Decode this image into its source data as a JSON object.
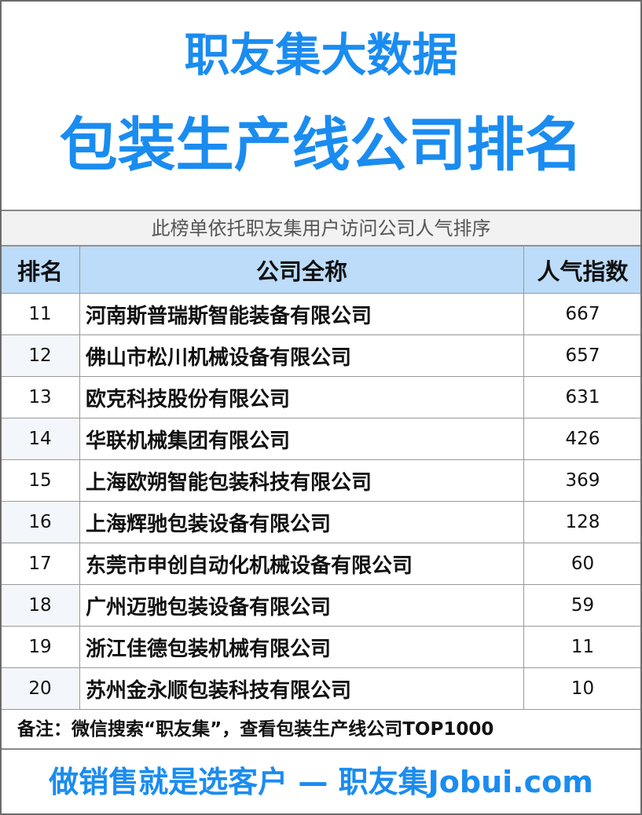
{
  "header": {
    "line1": "职友集大数据",
    "line2": "包装生产线公司排名"
  },
  "subtitle": "此榜单依托职友集用户访问公司人气排序",
  "table": {
    "columns": [
      "排名",
      "公司全称",
      "人气指数"
    ],
    "rows": [
      [
        "11",
        "河南斯普瑞斯智能装备有限公司",
        "667"
      ],
      [
        "12",
        "佛山市松川机械设备有限公司",
        "657"
      ],
      [
        "13",
        "欧克科技股份有限公司",
        "631"
      ],
      [
        "14",
        "华联机械集团有限公司",
        "426"
      ],
      [
        "15",
        "上海欧朔智能包装科技有限公司",
        "369"
      ],
      [
        "16",
        "上海辉驰包装设备有限公司",
        "128"
      ],
      [
        "17",
        "东莞市申创自动化机械设备有限公司",
        "60"
      ],
      [
        "18",
        "广州迈驰包装设备有限公司",
        "59"
      ],
      [
        "19",
        "浙江佳德包装机械有限公司",
        "11"
      ],
      [
        "20",
        "苏州金永顺包装科技有限公司",
        "10"
      ]
    ]
  },
  "note": "备注：微信搜索“职友集”，查看包装生产线公司TOP1000",
  "footer": "做销售就是选客户 — 职友集Jobui.com",
  "colors": {
    "accent": "#1a8cf0",
    "header_bg": "#bcdcfa"
  }
}
